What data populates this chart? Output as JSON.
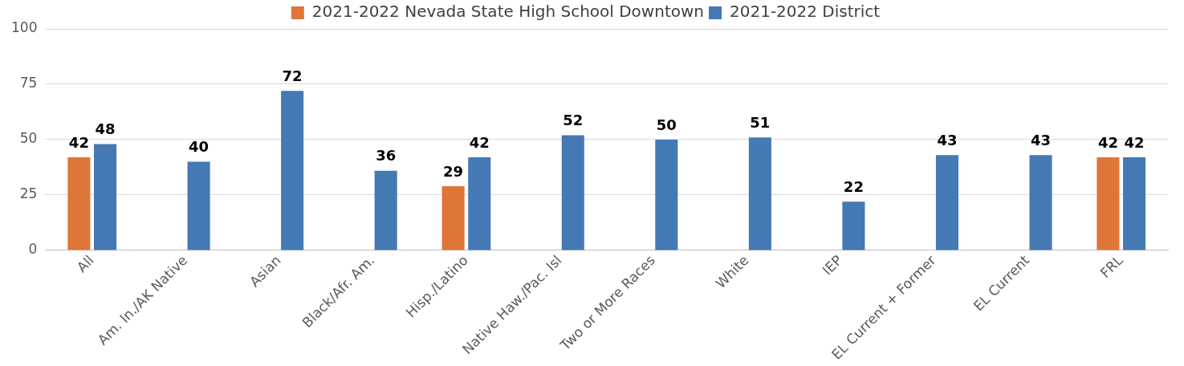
{
  "chart_data": {
    "type": "bar",
    "categories": [
      "All",
      "Am. In./AK Native",
      "Asian",
      "Black/Afr. Am.",
      "Hisp./Latino",
      "Native Haw./Pac. Isl",
      "Two or More Races",
      "White",
      "IEP",
      "EL Current + Former",
      "EL Current",
      "FRL"
    ],
    "series": [
      {
        "name": "2021-2022 Nevada State High School Downtown",
        "color": "#e07538",
        "values": [
          42,
          null,
          null,
          null,
          29,
          null,
          null,
          null,
          null,
          null,
          null,
          42
        ]
      },
      {
        "name": "2021-2022 District",
        "color": "#4479b4",
        "values": [
          48,
          40,
          72,
          36,
          42,
          52,
          50,
          51,
          22,
          43,
          43,
          42
        ]
      }
    ],
    "ylim": [
      0,
      100
    ],
    "yticks": [
      0,
      25,
      50,
      75,
      100
    ],
    "grid": "y",
    "legend": "top",
    "data_labels": true
  }
}
